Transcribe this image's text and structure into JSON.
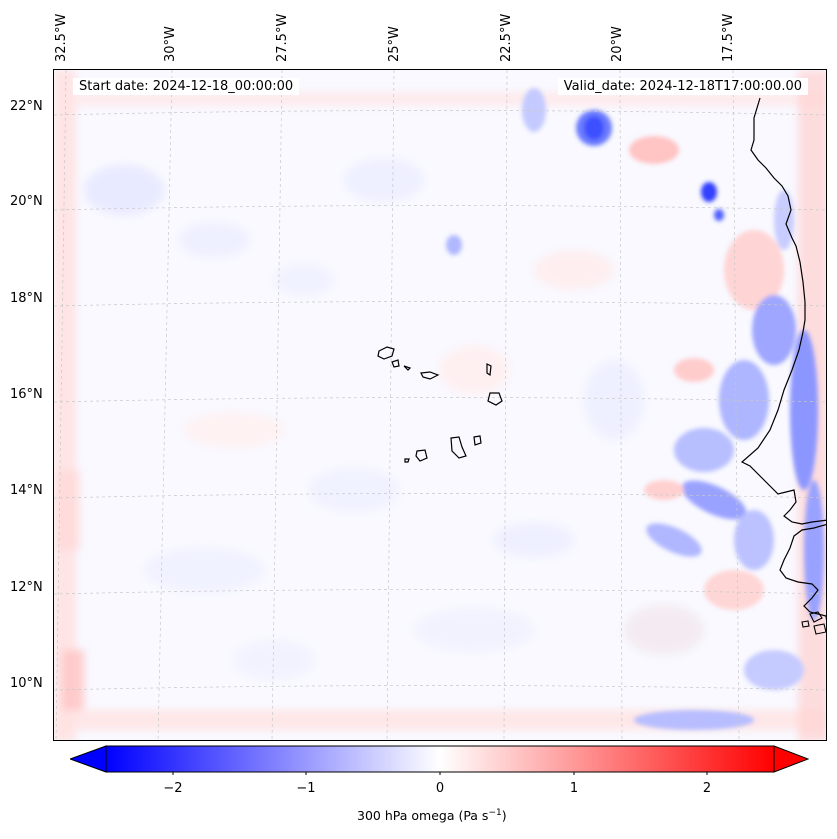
{
  "map": {
    "start_date": "Start date: 2024-12-18_00:00:00",
    "valid_date": "Valid_date: 2024-12-18T17:00:00.00",
    "lon_labels": [
      "32.5°W",
      "30°W",
      "27.5°W",
      "25°W",
      "22.5°W",
      "20°W",
      "17.5°W"
    ],
    "lat_labels": [
      "22°N",
      "20°N",
      "18°N",
      "16°N",
      "14°N",
      "12°N",
      "10°N"
    ],
    "colors": {
      "negative": "#0000ff",
      "zero": "#ffffff",
      "positive": "#ff0000",
      "coast": "#000000",
      "grid": "#c8c8c8"
    }
  },
  "colorbar": {
    "ticks": [
      "−2",
      "−1",
      "0",
      "1",
      "2"
    ],
    "label": "300 hPa omega (Pa s",
    "label_sup": "−1",
    "label_end": ")",
    "range": [
      -2.5,
      2.5
    ]
  }
}
